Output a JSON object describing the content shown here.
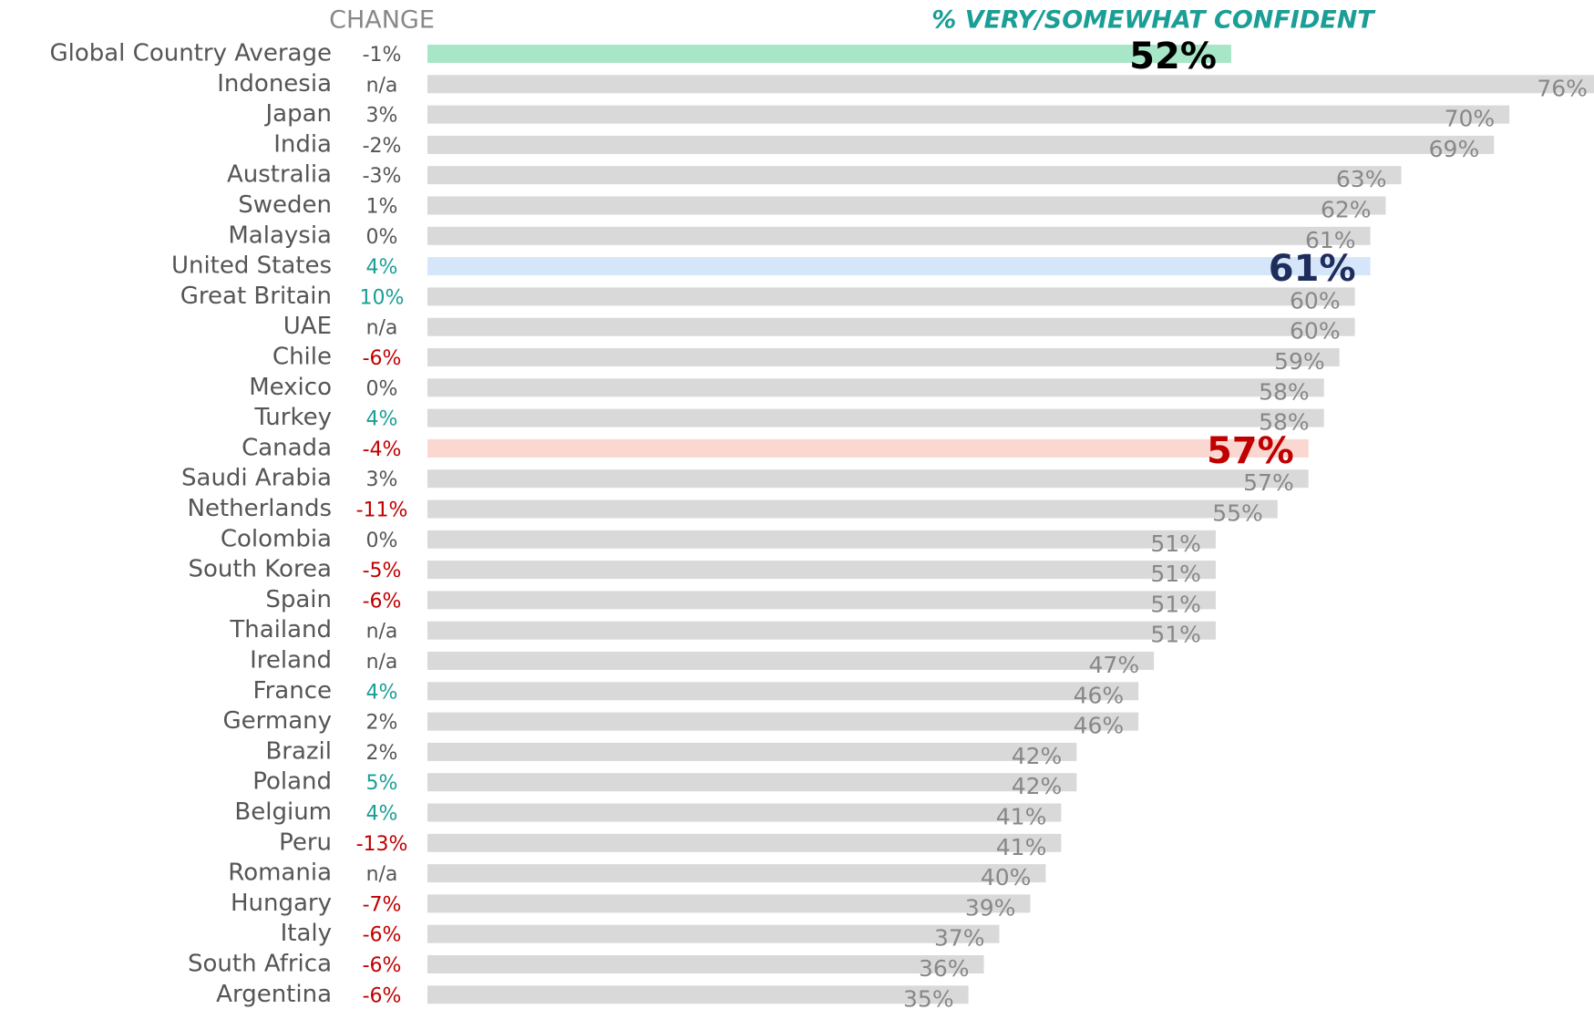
{
  "chart_data": {
    "type": "hbar",
    "change_header": "CHANGE",
    "value_header": "% VERY/SOMEWHAT CONFIDENT",
    "categories": [
      "Global Country Average",
      "Indonesia",
      "Japan",
      "India",
      "Australia",
      "Sweden",
      "Malaysia",
      "United States",
      "Great Britain",
      "UAE",
      "Chile",
      "Mexico",
      "Turkey",
      "Canada",
      "Saudi Arabia",
      "Netherlands",
      "Colombia",
      "South Korea",
      "Spain",
      "Thailand",
      "Ireland",
      "France",
      "Germany",
      "Brazil",
      "Poland",
      "Belgium",
      "Peru",
      "Romania",
      "Hungary",
      "Italy",
      "South Africa",
      "Argentina"
    ],
    "changes": [
      "-1%",
      "n/a",
      "3%",
      "-2%",
      "-3%",
      "1%",
      "0%",
      "4%",
      "10%",
      "n/a",
      "-6%",
      "0%",
      "4%",
      "-4%",
      "3%",
      "-11%",
      "0%",
      "-5%",
      "-6%",
      "n/a",
      "n/a",
      "4%",
      "2%",
      "2%",
      "5%",
      "4%",
      "-13%",
      "n/a",
      "-7%",
      "-6%",
      "-6%",
      "-6%"
    ],
    "change_colors": [
      "#555",
      "#555",
      "#555",
      "#555",
      "#555",
      "#555",
      "#555",
      "#1a9e96",
      "#1a9e96",
      "#555",
      "#c00000",
      "#555",
      "#1a9e96",
      "#c00000",
      "#555",
      "#c00000",
      "#555",
      "#c00000",
      "#c00000",
      "#555",
      "#555",
      "#1a9e96",
      "#555",
      "#555",
      "#1a9e96",
      "#1a9e96",
      "#c00000",
      "#555",
      "#c00000",
      "#c00000",
      "#c00000",
      "#c00000"
    ],
    "values": [
      52,
      76,
      70,
      69,
      63,
      62,
      61,
      61,
      60,
      60,
      59,
      58,
      58,
      57,
      57,
      55,
      51,
      51,
      51,
      51,
      47,
      46,
      46,
      42,
      42,
      41,
      41,
      40,
      39,
      37,
      36,
      35
    ],
    "value_labels": [
      "52%",
      "76%",
      "70%",
      "69%",
      "63%",
      "62%",
      "61%",
      "61%",
      "60%",
      "60%",
      "59%",
      "58%",
      "58%",
      "57%",
      "57%",
      "55%",
      "51%",
      "51%",
      "51%",
      "51%",
      "47%",
      "46%",
      "46%",
      "42%",
      "42%",
      "41%",
      "41%",
      "40%",
      "39%",
      "37%",
      "36%",
      "35%"
    ],
    "bar_colors": [
      "#a8e6c8",
      "#d9d9d9",
      "#d9d9d9",
      "#d9d9d9",
      "#d9d9d9",
      "#d9d9d9",
      "#d9d9d9",
      "#d6e6fa",
      "#d9d9d9",
      "#d9d9d9",
      "#d9d9d9",
      "#d9d9d9",
      "#d9d9d9",
      "#fad7d0",
      "#d9d9d9",
      "#d9d9d9",
      "#d9d9d9",
      "#d9d9d9",
      "#d9d9d9",
      "#d9d9d9",
      "#d9d9d9",
      "#d9d9d9",
      "#d9d9d9",
      "#d9d9d9",
      "#d9d9d9",
      "#d9d9d9",
      "#d9d9d9",
      "#d9d9d9",
      "#d9d9d9",
      "#d9d9d9",
      "#d9d9d9",
      "#d9d9d9"
    ],
    "value_label_colors": [
      "#000000",
      "#888",
      "#888",
      "#888",
      "#888",
      "#888",
      "#888",
      "#1f2d5c",
      "#888",
      "#888",
      "#888",
      "#888",
      "#888",
      "#c00000",
      "#888",
      "#888",
      "#888",
      "#888",
      "#888",
      "#888",
      "#888",
      "#888",
      "#888",
      "#888",
      "#888",
      "#888",
      "#888",
      "#888",
      "#888",
      "#888",
      "#888",
      "#888"
    ],
    "bold_labels": [
      true,
      false,
      false,
      false,
      false,
      false,
      false,
      true,
      false,
      false,
      false,
      false,
      false,
      true,
      false,
      false,
      false,
      false,
      false,
      false,
      false,
      false,
      false,
      false,
      false,
      false,
      false,
      false,
      false,
      false,
      false,
      false
    ]
  }
}
